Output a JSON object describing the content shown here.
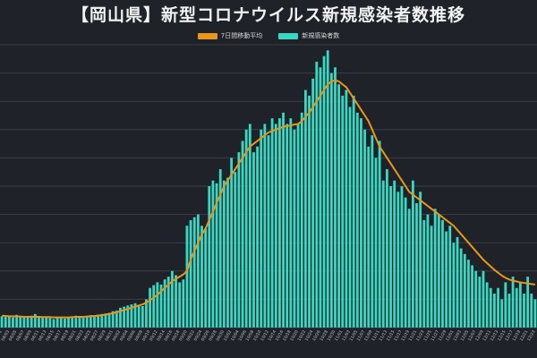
{
  "title": "【岡山県】新型コロナウイルス新規感染者数推移",
  "colors": {
    "background": "#1f2228",
    "grid": "#3a3e46",
    "bar": "#38d8c2",
    "line": "#e8961c"
  },
  "chart_data": {
    "type": "bar",
    "title": "【岡山県】新型コロナウイルス新規感染者数推移",
    "grid": true,
    "legend_position": "top-center",
    "ylim": [
      0,
      1000
    ],
    "x": [
      "08/01",
      "08/02",
      "08/03",
      "08/04",
      "08/05",
      "08/06",
      "08/07",
      "08/08",
      "08/09",
      "08/10",
      "08/11",
      "08/12",
      "08/13",
      "08/14",
      "08/15",
      "08/16",
      "08/17",
      "08/18",
      "08/19",
      "08/20",
      "08/21",
      "08/22",
      "08/23",
      "08/24",
      "08/25",
      "08/26",
      "08/27",
      "08/28",
      "08/29",
      "08/30",
      "08/31",
      "09/01",
      "09/02",
      "09/03",
      "09/04",
      "09/05",
      "09/06",
      "09/07",
      "09/08",
      "09/09",
      "09/10",
      "09/11",
      "09/12",
      "09/13",
      "09/14",
      "09/15",
      "09/16",
      "09/17",
      "09/18",
      "09/19",
      "09/20",
      "09/21",
      "09/22",
      "09/23",
      "09/24",
      "09/25",
      "09/26",
      "09/27",
      "09/28",
      "09/29",
      "09/30",
      "10/01",
      "10/02",
      "10/03",
      "10/04",
      "10/05",
      "10/06",
      "10/07",
      "10/08",
      "10/09",
      "10/10",
      "10/11",
      "10/12",
      "10/13",
      "10/14",
      "10/15",
      "10/16",
      "10/17",
      "10/18",
      "10/19",
      "10/20",
      "10/21",
      "10/22",
      "10/23",
      "10/24",
      "10/25",
      "10/26",
      "10/27",
      "10/28",
      "10/29",
      "10/30",
      "10/31",
      "11/01",
      "11/02",
      "11/03",
      "11/04",
      "11/05",
      "11/06",
      "11/07",
      "11/08",
      "11/09",
      "11/10",
      "11/11",
      "11/12",
      "11/13",
      "11/14",
      "11/15",
      "11/16",
      "11/17",
      "11/18",
      "11/19",
      "11/20",
      "11/21",
      "11/22",
      "11/23",
      "11/24",
      "11/25",
      "11/26",
      "11/27",
      "11/28",
      "11/29",
      "11/30",
      "12/01",
      "12/02",
      "12/03",
      "12/04",
      "12/05",
      "12/06",
      "12/07",
      "12/08",
      "12/09",
      "12/10",
      "12/11",
      "12/12",
      "12/13",
      "12/14",
      "12/15",
      "12/16",
      "12/17",
      "12/18",
      "12/19",
      "12/20",
      "12/21",
      "12/22",
      "12/23"
    ],
    "series": [
      {
        "name": "新規感染者数",
        "kind": "bar",
        "values": [
          40,
          38,
          42,
          36,
          45,
          40,
          38,
          35,
          42,
          48,
          40,
          36,
          38,
          34,
          30,
          35,
          38,
          32,
          36,
          40,
          42,
          38,
          36,
          40,
          44,
          42,
          46,
          48,
          50,
          52,
          58,
          60,
          70,
          74,
          78,
          82,
          86,
          80,
          76,
          100,
          140,
          150,
          160,
          152,
          170,
          180,
          200,
          185,
          160,
          170,
          360,
          380,
          390,
          400,
          360,
          350,
          500,
          520,
          510,
          560,
          520,
          530,
          600,
          550,
          620,
          660,
          700,
          720,
          620,
          640,
          700,
          720,
          680,
          740,
          720,
          740,
          760,
          720,
          740,
          700,
          720,
          760,
          840,
          820,
          880,
          940,
          920,
          960,
          980,
          900,
          920,
          860,
          820,
          840,
          780,
          820,
          760,
          740,
          700,
          640,
          680,
          600,
          660,
          520,
          560,
          500,
          520,
          480,
          500,
          460,
          420,
          520,
          440,
          480,
          380,
          400,
          360,
          420,
          400,
          380,
          340,
          360,
          300,
          320,
          280,
          260,
          240,
          220,
          200,
          180,
          200,
          160,
          140,
          120,
          140,
          100,
          160,
          120,
          180,
          140,
          160,
          120,
          180,
          120,
          100
        ]
      },
      {
        "name": "7日間移動平均",
        "kind": "line",
        "values": [
          42,
          41,
          40,
          40,
          39,
          39,
          38,
          38,
          38,
          38,
          38,
          37,
          37,
          37,
          36,
          36,
          36,
          36,
          36,
          37,
          38,
          38,
          38,
          39,
          40,
          41,
          42,
          44,
          46,
          48,
          51,
          54,
          58,
          62,
          66,
          70,
          74,
          78,
          82,
          88,
          96,
          106,
          116,
          128,
          140,
          152,
          164,
          172,
          180,
          188,
          200,
          240,
          270,
          300,
          330,
          350,
          380,
          410,
          440,
          470,
          500,
          520,
          540,
          560,
          580,
          600,
          620,
          640,
          650,
          660,
          670,
          680,
          690,
          695,
          700,
          705,
          710,
          712,
          715,
          718,
          720,
          730,
          745,
          760,
          780,
          800,
          820,
          840,
          860,
          870,
          875,
          870,
          860,
          850,
          830,
          810,
          790,
          770,
          750,
          730,
          700,
          670,
          640,
          620,
          600,
          580,
          560,
          540,
          520,
          500,
          480,
          470,
          460,
          450,
          440,
          430,
          420,
          410,
          400,
          390,
          380,
          370,
          360,
          345,
          330,
          315,
          300,
          285,
          270,
          255,
          240,
          228,
          216,
          204,
          194,
          184,
          176,
          170,
          166,
          163,
          160,
          158,
          156,
          154,
          152
        ]
      }
    ]
  }
}
